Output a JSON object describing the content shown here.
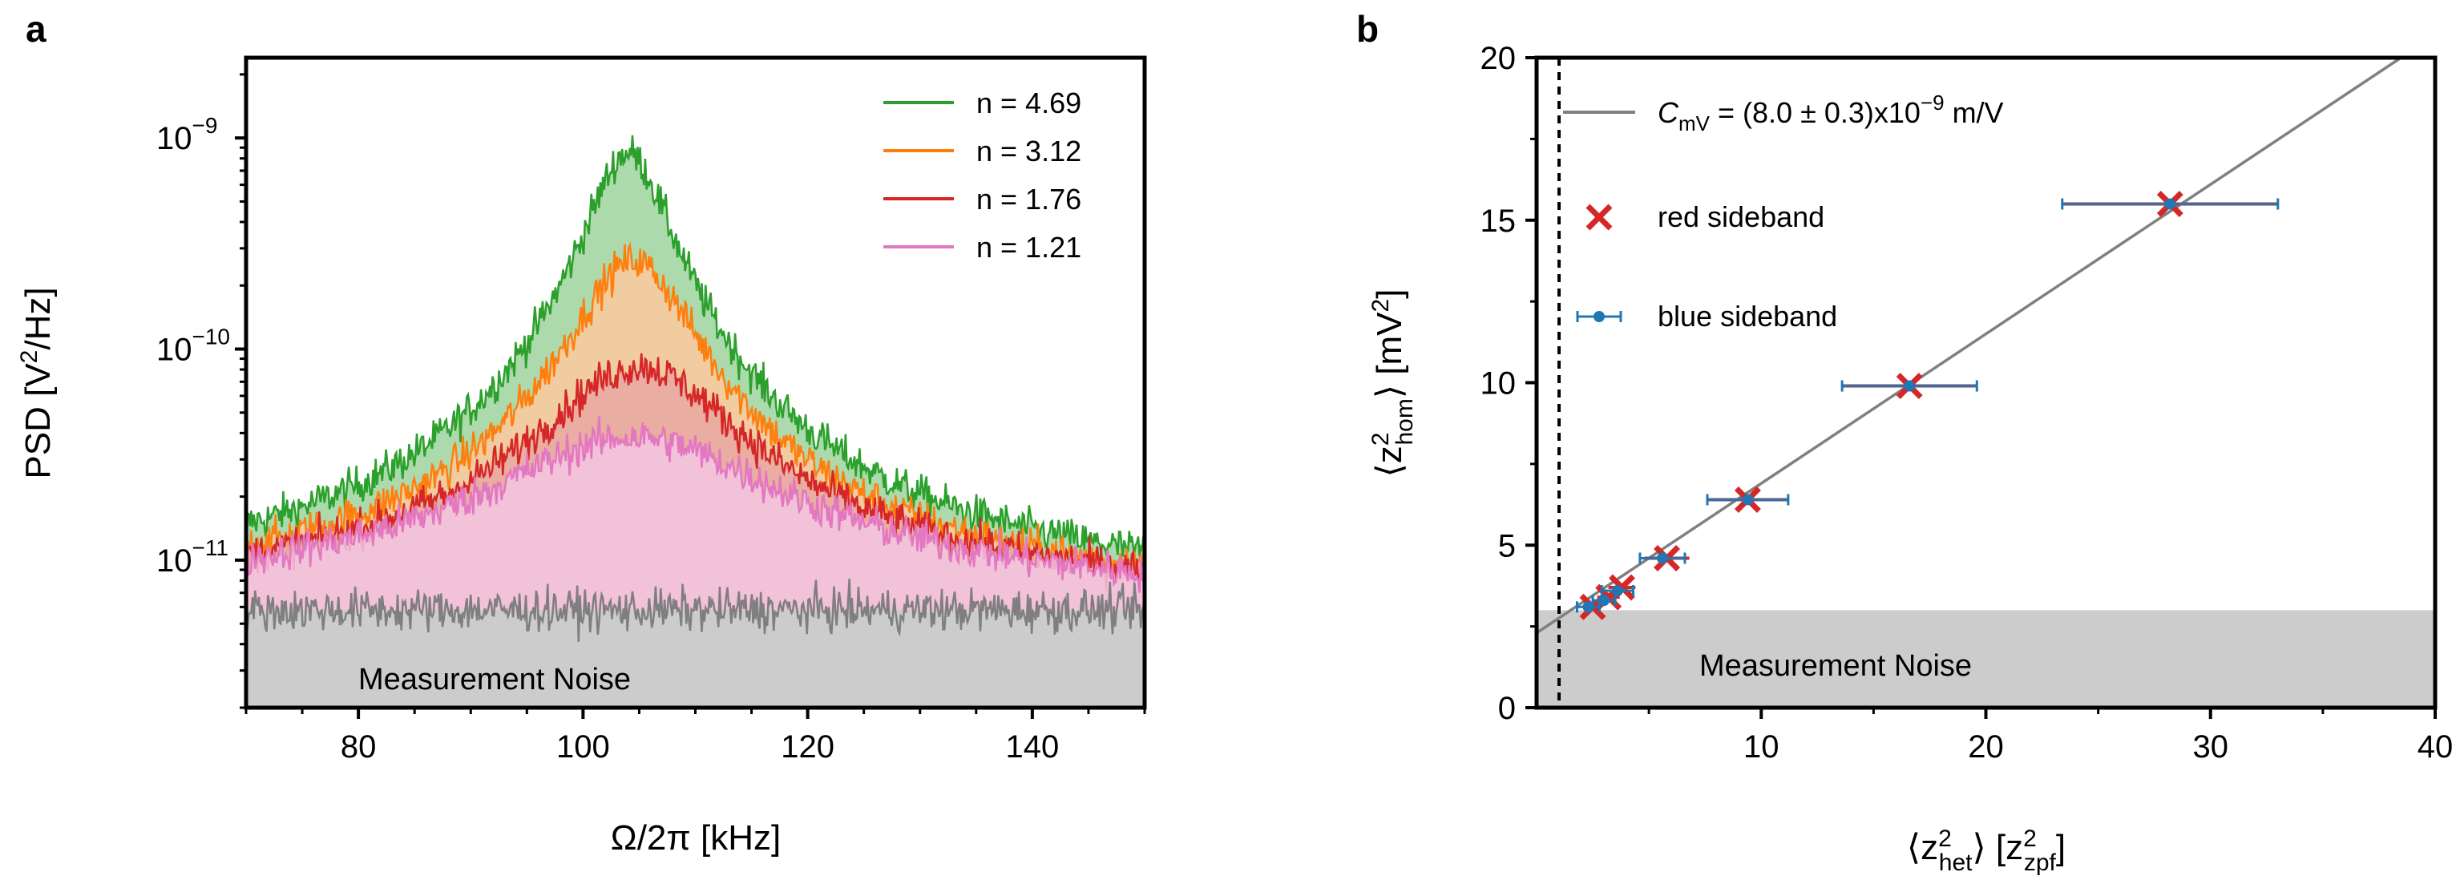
{
  "chart_data": [
    {
      "panel": "a",
      "type": "line",
      "xlabel": "Ω/2π [kHz]",
      "ylabel": "PSD [V²/Hz]",
      "ylabel_parts": {
        "main": "PSD [V",
        "sup": "2",
        "tail": "/Hz]"
      },
      "yscale": "log",
      "xlim": [
        70,
        150
      ],
      "ylim": [
        2e-12,
        2.4e-09
      ],
      "xticks": [
        80,
        100,
        120,
        140
      ],
      "yticks": [
        {
          "value": 1e-09,
          "base": "10",
          "exp": "−9"
        },
        {
          "value": 1e-10,
          "base": "10",
          "exp": "−10"
        },
        {
          "value": 1e-11,
          "base": "10",
          "exp": "−11"
        }
      ],
      "legend_position": "top-right",
      "series": [
        {
          "name": "n = 4.69",
          "color": "#2ca02c",
          "fill": "#9ed49e",
          "center_khz": 104.0,
          "halfwidth_khz": 3.3,
          "peak": 8.5e-10
        },
        {
          "name": "n = 3.12",
          "color": "#ff7f0e",
          "fill": "#fdc99e",
          "center_khz": 104.5,
          "halfwidth_khz": 4.8,
          "peak": 2.6e-10
        },
        {
          "name": "n = 1.76",
          "color": "#d62728",
          "fill": "#e8a7a2",
          "center_khz": 105.0,
          "halfwidth_khz": 8.0,
          "peak": 8e-11
        },
        {
          "name": "n = 1.21",
          "color": "#e377c2",
          "fill": "#f3c6e3",
          "center_khz": 104.5,
          "halfwidth_khz": 12.0,
          "peak": 3.6e-11
        }
      ],
      "noise_floor": {
        "name": "Measurement Noise",
        "level": 5.8e-12,
        "color": "#7f7f7f"
      }
    },
    {
      "panel": "b",
      "type": "scatter",
      "xlabel": "⟨z²_het⟩ [z²_zpf]",
      "xlabel_parts": {
        "open": "⟨z",
        "sup": "2",
        "sub": "het",
        "close": "⟩ [z",
        "sup2": "2",
        "sub2": "zpf",
        "end": "]"
      },
      "ylabel": "⟨z²_hom⟩ [mV²]",
      "ylabel_parts": {
        "open": "⟨z",
        "sup": "2",
        "sub": "hom",
        "close": "⟩ [mV",
        "sup2": "2",
        "end": "]"
      },
      "xlim": [
        0,
        40
      ],
      "ylim": [
        0,
        20
      ],
      "xticks": [
        10,
        20,
        30,
        40
      ],
      "yticks": [
        0,
        5,
        10,
        15,
        20
      ],
      "fit_line": {
        "slope": 0.46,
        "intercept": 2.3,
        "color": "#808080"
      },
      "fit_label": {
        "main": "C",
        "sub": "mV",
        "rest": " = (8.0 ± 0.3)x10",
        "sup": "−9",
        "unit": " m/V"
      },
      "vertical_dashed_line_x": 1.0,
      "noise_band": {
        "name": "Measurement Noise",
        "y_max": 3.0
      },
      "series": [
        {
          "name": "red sideband",
          "marker": "x",
          "color": "#d62728",
          "points": [
            {
              "x": 2.5,
              "y": 3.1,
              "xerr": 0.4
            },
            {
              "x": 3.2,
              "y": 3.4,
              "xerr": 0.5
            },
            {
              "x": 3.8,
              "y": 3.7,
              "xerr": 0.6
            },
            {
              "x": 5.8,
              "y": 4.6,
              "xerr": 1.0
            },
            {
              "x": 9.4,
              "y": 6.4,
              "xerr": 1.8
            },
            {
              "x": 16.6,
              "y": 9.9,
              "xerr": 3.0
            },
            {
              "x": 28.2,
              "y": 15.5,
              "xerr": 4.8
            }
          ]
        },
        {
          "name": "blue sideband",
          "marker": "o",
          "color": "#1f77b4",
          "points": [
            {
              "x": 2.3,
              "y": 3.1,
              "xerr": 0.5
            },
            {
              "x": 3.0,
              "y": 3.3,
              "xerr": 0.5
            },
            {
              "x": 3.6,
              "y": 3.6,
              "xerr": 0.7
            },
            {
              "x": 5.6,
              "y": 4.6,
              "xerr": 1.0
            },
            {
              "x": 9.4,
              "y": 6.4,
              "xerr": 1.8
            },
            {
              "x": 16.6,
              "y": 9.9,
              "xerr": 3.0
            },
            {
              "x": 28.2,
              "y": 15.5,
              "xerr": 4.8
            }
          ]
        }
      ]
    }
  ]
}
